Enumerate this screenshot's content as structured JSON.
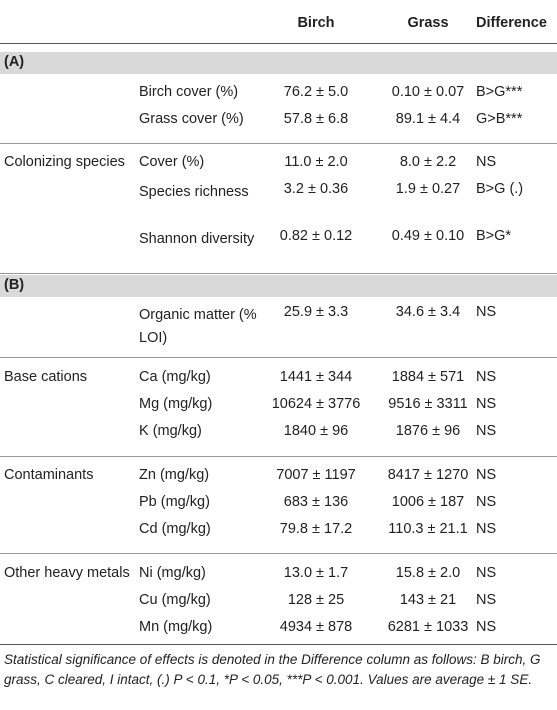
{
  "header": {
    "col_birch": "Birch",
    "col_grass": "Grass",
    "col_difference": "Difference"
  },
  "sections": {
    "a_label": "(A)",
    "b_label": "(B)"
  },
  "rows": [
    {
      "group": "",
      "variable": "Birch cover (%)",
      "birch": "76.2 ± 5.0",
      "grass": "0.10 ± 0.07",
      "difference": "B>G***"
    },
    {
      "group": "",
      "variable": "Grass cover (%)",
      "birch": "57.8 ± 6.8",
      "grass": "89.1 ± 4.4",
      "difference": "G>B***"
    },
    {
      "group": "Colonizing species",
      "variable": "Cover (%)",
      "birch": "11.0 ± 2.0",
      "grass": "8.0 ± 2.2",
      "difference": "NS"
    },
    {
      "group": "",
      "variable": "Species richness",
      "birch": "3.2 ± 0.36",
      "grass": "1.9 ± 0.27",
      "difference": "B>G (.)"
    },
    {
      "group": "",
      "variable": "Shannon diversity",
      "birch": "0.82 ± 0.12",
      "grass": "0.49 ± 0.10",
      "difference": "B>G*"
    },
    {
      "group": "",
      "variable": "Organic matter (% LOI)",
      "birch": "25.9 ± 3.3",
      "grass": "34.6 ± 3.4",
      "difference": "NS"
    },
    {
      "group": "Base cations",
      "variable": "Ca (mg/kg)",
      "birch": "1441 ± 344",
      "grass": "1884 ± 571",
      "difference": "NS"
    },
    {
      "group": "",
      "variable": "Mg (mg/kg)",
      "birch": "10624 ± 3776",
      "grass": "9516 ± 3311",
      "difference": "NS"
    },
    {
      "group": "",
      "variable": "K (mg/kg)",
      "birch": "1840 ± 96",
      "grass": "1876 ± 96",
      "difference": "NS"
    },
    {
      "group": "Contaminants",
      "variable": "Zn (mg/kg)",
      "birch": "7007 ± 1197",
      "grass": "8417 ± 1270",
      "difference": "NS"
    },
    {
      "group": "",
      "variable": "Pb (mg/kg)",
      "birch": "683 ± 136",
      "grass": "1006 ± 187",
      "difference": "NS"
    },
    {
      "group": "",
      "variable": "Cd (mg/kg)",
      "birch": "79.8 ± 17.2",
      "grass": "110.3 ± 21.1",
      "difference": "NS"
    },
    {
      "group": "Other heavy metals",
      "variable": "Ni (mg/kg)",
      "birch": "13.0 ± 1.7",
      "grass": "15.8 ± 2.0",
      "difference": "NS"
    },
    {
      "group": "",
      "variable": "Cu (mg/kg)",
      "birch": "128 ± 25",
      "grass": "143 ± 21",
      "difference": "NS"
    },
    {
      "group": "",
      "variable": "Mn (mg/kg)",
      "birch": "4934 ± 878",
      "grass": "6281 ± 1033",
      "difference": "NS"
    }
  ],
  "caption": "Statistical significance of effects is denoted in the Difference column as follows: B birch, G grass, C cleared, I intact, (.) P < 0.1, *P < 0.05, ***P < 0.001. Values are average ± 1 SE."
}
